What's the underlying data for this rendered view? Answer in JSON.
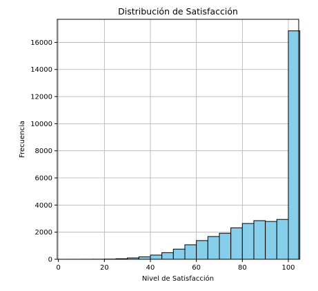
{
  "chart_data": {
    "type": "bar",
    "title": "Distribución de Satisfacción",
    "xlabel": "Nivel de Satisfacción",
    "ylabel": "Frecuencia",
    "xlim": [
      -0.5,
      104.5
    ],
    "ylim": [
      0,
      17700
    ],
    "x_ticks": [
      0,
      20,
      40,
      60,
      80,
      100
    ],
    "y_ticks": [
      0,
      2000,
      4000,
      6000,
      8000,
      10000,
      12000,
      14000,
      16000
    ],
    "grid": true,
    "bins": [
      {
        "start": 0,
        "end": 5,
        "value": 2
      },
      {
        "start": 5,
        "end": 10,
        "value": 3
      },
      {
        "start": 10,
        "end": 15,
        "value": 5
      },
      {
        "start": 15,
        "end": 20,
        "value": 8
      },
      {
        "start": 20,
        "end": 25,
        "value": 15
      },
      {
        "start": 25,
        "end": 30,
        "value": 40
      },
      {
        "start": 30,
        "end": 35,
        "value": 100
      },
      {
        "start": 35,
        "end": 40,
        "value": 180
      },
      {
        "start": 40,
        "end": 45,
        "value": 310
      },
      {
        "start": 45,
        "end": 50,
        "value": 490
      },
      {
        "start": 50,
        "end": 55,
        "value": 750
      },
      {
        "start": 55,
        "end": 60,
        "value": 1070
      },
      {
        "start": 60,
        "end": 65,
        "value": 1380
      },
      {
        "start": 65,
        "end": 70,
        "value": 1680
      },
      {
        "start": 70,
        "end": 75,
        "value": 1920
      },
      {
        "start": 75,
        "end": 80,
        "value": 2320
      },
      {
        "start": 80,
        "end": 85,
        "value": 2640
      },
      {
        "start": 85,
        "end": 90,
        "value": 2850
      },
      {
        "start": 90,
        "end": 95,
        "value": 2790
      },
      {
        "start": 95,
        "end": 100,
        "value": 2940
      },
      {
        "start": 100,
        "end": 105,
        "value": 16850
      }
    ],
    "colors": {
      "bar_fill": "#87ceeb",
      "bar_edge": "#000000",
      "grid": "#b0b0b0"
    }
  }
}
